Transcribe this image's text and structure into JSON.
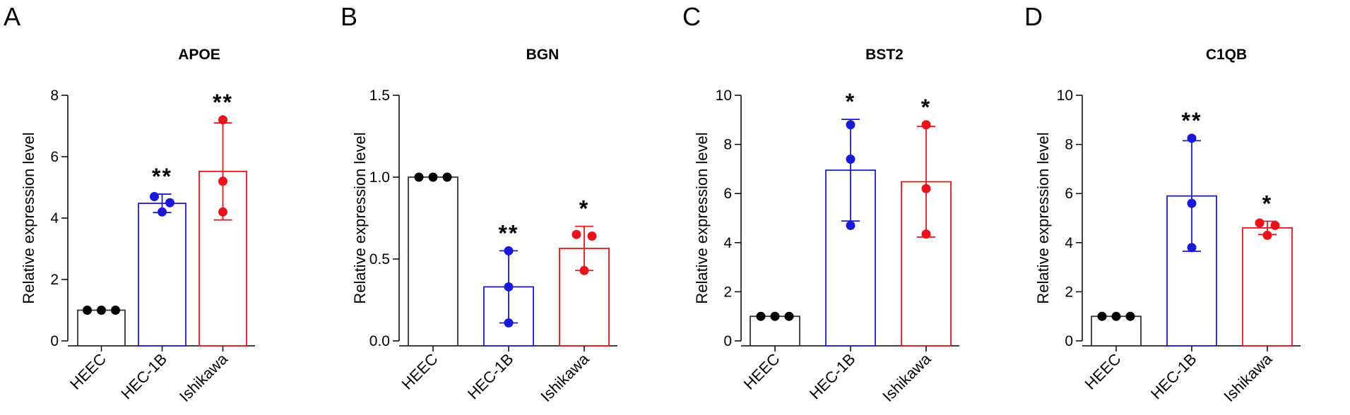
{
  "colors": {
    "HEEC": "#333333",
    "HEEC_dot": "#000000",
    "HEC-1B": "#1a1ad6",
    "Ishikawa": "#e8131b",
    "axis": "#000000"
  },
  "chart_data": [
    {
      "type": "bar",
      "panel": "A",
      "title": "APOE",
      "ylabel": "Relative expression level",
      "categories": [
        "HEEC",
        "HEC-1B",
        "Ishikawa"
      ],
      "values": [
        1.0,
        4.48,
        5.52
      ],
      "errors": [
        0,
        0.3,
        1.58
      ],
      "points": [
        [
          1.0,
          1.0,
          1.0
        ],
        [
          4.7,
          4.5,
          4.2
        ],
        [
          7.2,
          5.2,
          4.2
        ]
      ],
      "significance": [
        "",
        "**",
        "**"
      ],
      "ylim": [
        0,
        8
      ],
      "yticks": [
        "0",
        "2",
        "4",
        "6",
        "8"
      ],
      "ytick_values": [
        0,
        2,
        4,
        6,
        8
      ]
    },
    {
      "type": "bar",
      "panel": "B",
      "title": "BGN",
      "ylabel": "Relative expression level",
      "categories": [
        "HEEC",
        "HEC-1B",
        "Ishikawa"
      ],
      "values": [
        1.0,
        0.33,
        0.565
      ],
      "errors": [
        0,
        0.22,
        0.135
      ],
      "points": [
        [
          1.0,
          1.0,
          1.0
        ],
        [
          0.55,
          0.33,
          0.11
        ],
        [
          0.65,
          0.64,
          0.43
        ]
      ],
      "significance": [
        "",
        "**",
        "*"
      ],
      "ylim": [
        0,
        1.5
      ],
      "yticks": [
        "0.0",
        "0.5",
        "1.0",
        "1.5"
      ],
      "ytick_values": [
        0,
        0.5,
        1.0,
        1.5
      ]
    },
    {
      "type": "bar",
      "panel": "C",
      "title": "BST2",
      "ylabel": "Relative expression level",
      "categories": [
        "HEEC",
        "HEC-1B",
        "Ishikawa"
      ],
      "values": [
        1.0,
        6.95,
        6.48
      ],
      "errors": [
        0,
        2.07,
        2.25
      ],
      "points": [
        [
          1.0,
          1.0,
          1.0
        ],
        [
          8.8,
          7.4,
          4.7
        ],
        [
          8.8,
          6.2,
          4.35
        ]
      ],
      "significance": [
        "",
        "*",
        "*"
      ],
      "ylim": [
        0,
        10
      ],
      "yticks": [
        "0",
        "2",
        "4",
        "6",
        "8",
        "10"
      ],
      "ytick_values": [
        0,
        2,
        4,
        6,
        8,
        10
      ]
    },
    {
      "type": "bar",
      "panel": "D",
      "title": "C1QB",
      "ylabel": "Relative expression level",
      "categories": [
        "HEEC",
        "HEC-1B",
        "Ishikawa"
      ],
      "values": [
        1.0,
        5.9,
        4.6
      ],
      "errors": [
        0,
        2.25,
        0.27
      ],
      "points": [
        [
          1.0,
          1.0,
          1.0
        ],
        [
          8.25,
          5.6,
          3.8
        ],
        [
          4.8,
          4.7,
          4.3
        ]
      ],
      "significance": [
        "",
        "**",
        "*"
      ],
      "ylim": [
        0,
        10
      ],
      "yticks": [
        "0",
        "2",
        "4",
        "6",
        "8",
        "10"
      ],
      "ytick_values": [
        0,
        2,
        4,
        6,
        8,
        10
      ]
    }
  ]
}
